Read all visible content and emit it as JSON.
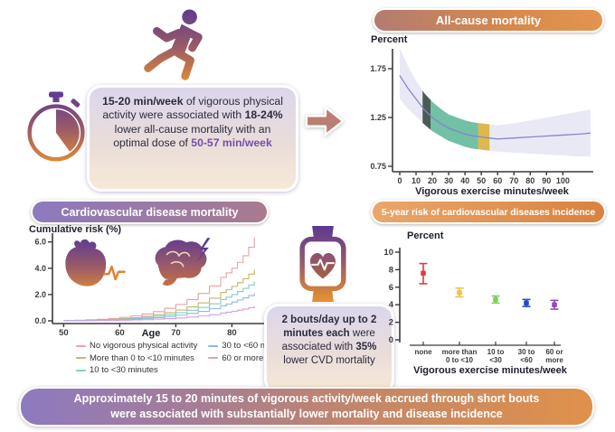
{
  "intro": {
    "box": {
      "run1": "15-20 min/week",
      "run2": " of vigorous physical activity were associated with ",
      "run3": "18-24%",
      "run4": " lower all-cause mortality with an optimal dose of ",
      "run5": "50-57 min/week"
    }
  },
  "watch": {
    "box": {
      "run1": "2 bouts/day up to 2 minutes each",
      "run2": " were associated with ",
      "run3": "35%",
      "run4": " lower CVD mortality"
    }
  },
  "banner": {
    "line1": "Approximately 15 to 20 minutes of vigorous activity/week accrued through short bouts",
    "line2": "were associated with substantially lower mortality and disease incidence"
  },
  "icons": {
    "runner": "runner-icon",
    "stopwatch": "stopwatch-icon",
    "arrow": "arrow-right-icon",
    "heart": "heart-ecg-icon",
    "brain": "brain-lightning-icon",
    "smartwatch": "smartwatch-heart-icon"
  },
  "colors": {
    "icon_gradient": [
      "#5b3894",
      "#9a5a68",
      "#e8922f"
    ],
    "header_allcause": [
      "#b27c72",
      "#e29550"
    ],
    "header_cvd": [
      "#8d7ac0",
      "#a87a8e"
    ],
    "header_risk": [
      "#eaa76a",
      "#d8823f"
    ],
    "banner": [
      "#8d7ac0",
      "#e0914a"
    ],
    "box_background": [
      "#dcd6ec",
      "#f7e9d6"
    ],
    "highlight_purple_text": "#7450a8"
  },
  "chart_data": [
    {
      "id": "allcause",
      "type": "line",
      "title": "All-cause mortality",
      "ylabel": "Percent",
      "xlabel": "Vigorous exercise minutes/week",
      "xlim": [
        0,
        117
      ],
      "ylim": [
        0.69,
        1.97
      ],
      "xticks": [
        0,
        10,
        20,
        30,
        40,
        50,
        60,
        70,
        80,
        90,
        100
      ],
      "yticks": [
        0.75,
        1.25,
        1.75
      ],
      "ytick_labels": [
        "0.75",
        "1.25",
        "1.75"
      ],
      "line_color": "#8585c9",
      "band_color": "#e9e9f6",
      "x": [
        0,
        5,
        10,
        15,
        20,
        25,
        30,
        35,
        40,
        45,
        50,
        55,
        60,
        70,
        80,
        90,
        100,
        110,
        117
      ],
      "y": [
        1.68,
        1.55,
        1.44,
        1.33,
        1.25,
        1.19,
        1.14,
        1.11,
        1.08,
        1.06,
        1.05,
        1.04,
        1.03,
        1.04,
        1.05,
        1.06,
        1.07,
        1.08,
        1.09
      ],
      "ci_upper": [
        1.96,
        1.78,
        1.63,
        1.5,
        1.41,
        1.34,
        1.28,
        1.25,
        1.22,
        1.2,
        1.19,
        1.18,
        1.17,
        1.19,
        1.22,
        1.25,
        1.28,
        1.31,
        1.33
      ],
      "ci_lower": [
        1.44,
        1.34,
        1.26,
        1.18,
        1.11,
        1.06,
        1.01,
        0.98,
        0.95,
        0.93,
        0.92,
        0.91,
        0.9,
        0.89,
        0.88,
        0.87,
        0.86,
        0.85,
        0.85
      ],
      "highlight_bands": [
        {
          "from": 14,
          "to": 19,
          "color": "#4a5c52"
        },
        {
          "from": 19,
          "to": 48,
          "color": "#72c0a5"
        },
        {
          "from": 48,
          "to": 55,
          "color": "#ddb84f"
        }
      ]
    },
    {
      "id": "cvd",
      "type": "line",
      "title": "Cardiovascular disease mortality",
      "ylabel": "Cumulative risk (%)",
      "xlabel": "Age",
      "xlim": [
        48,
        86
      ],
      "ylim": [
        0,
        6.6
      ],
      "xticks": [
        50,
        60,
        70,
        80
      ],
      "yticks": [
        0,
        2,
        4,
        6
      ],
      "ytick_labels": [
        "0.0",
        "2.0",
        "4.0",
        "6.0"
      ],
      "ages": [
        50,
        52,
        54,
        56,
        58,
        60,
        62,
        64,
        66,
        68,
        70,
        72,
        74,
        76,
        78,
        79,
        80,
        81,
        82,
        83,
        84
      ],
      "series": [
        {
          "name": "No vigorous physical activity",
          "color": "#e9a0a8",
          "values": [
            0.03,
            0.05,
            0.08,
            0.12,
            0.18,
            0.26,
            0.37,
            0.52,
            0.7,
            0.95,
            1.25,
            1.62,
            2.08,
            2.65,
            3.3,
            3.65,
            4.0,
            4.45,
            4.95,
            5.6,
            6.35
          ]
        },
        {
          "name": "More than 0 to <10 minutes",
          "color": "#c9b46a",
          "values": [
            0.02,
            0.03,
            0.05,
            0.08,
            0.12,
            0.17,
            0.24,
            0.34,
            0.46,
            0.62,
            0.82,
            1.06,
            1.36,
            1.72,
            2.15,
            2.38,
            2.62,
            2.9,
            3.2,
            3.55,
            3.9
          ]
        },
        {
          "name": "10 to <30 minutes",
          "color": "#82cdc3",
          "values": [
            0.01,
            0.02,
            0.04,
            0.06,
            0.09,
            0.13,
            0.19,
            0.26,
            0.35,
            0.47,
            0.62,
            0.8,
            1.02,
            1.29,
            1.62,
            1.8,
            2.0,
            2.22,
            2.47,
            2.73,
            3.0
          ]
        },
        {
          "name": "30 to <60 minutes",
          "color": "#8cb8e8",
          "values": [
            0.01,
            0.02,
            0.03,
            0.04,
            0.06,
            0.09,
            0.13,
            0.18,
            0.24,
            0.33,
            0.43,
            0.56,
            0.72,
            0.92,
            1.15,
            1.28,
            1.43,
            1.58,
            1.75,
            1.92,
            2.1
          ]
        },
        {
          "name": "60 or more minutes",
          "color": "#d2a0e2",
          "values": [
            0.0,
            0.01,
            0.01,
            0.02,
            0.03,
            0.05,
            0.07,
            0.09,
            0.13,
            0.17,
            0.22,
            0.29,
            0.37,
            0.47,
            0.6,
            0.66,
            0.73,
            0.81,
            0.9,
            1.0,
            1.1
          ]
        }
      ]
    },
    {
      "id": "risk5",
      "type": "scatter",
      "title": "5-year risk of cardiovascular diseases incidence",
      "ylabel": "Percent",
      "xlabel": "Vigorous exercise minutes/week",
      "ylim": [
        0,
        10
      ],
      "yticks": [
        0,
        2,
        4,
        6,
        8,
        10
      ],
      "ytick_labels": [
        "0",
        "2",
        "4",
        "6",
        "8",
        "10"
      ],
      "categories": [
        [
          "none"
        ],
        [
          "more than",
          "0 to <10"
        ],
        [
          "10 to",
          "<30"
        ],
        [
          "30 to",
          "<60"
        ],
        [
          "60 or",
          "more"
        ]
      ],
      "points": [
        {
          "value": 7.6,
          "ci": [
            6.4,
            8.7
          ],
          "color": "#e03c3c"
        },
        {
          "value": 5.4,
          "ci": [
            4.9,
            5.9
          ],
          "color": "#eec33f"
        },
        {
          "value": 4.6,
          "ci": [
            4.2,
            5.0
          ],
          "color": "#7bd05e"
        },
        {
          "value": 4.2,
          "ci": [
            3.8,
            4.6
          ],
          "color": "#2f45c8"
        },
        {
          "value": 4.0,
          "ci": [
            3.5,
            4.5
          ],
          "color": "#9544c4"
        }
      ]
    }
  ]
}
